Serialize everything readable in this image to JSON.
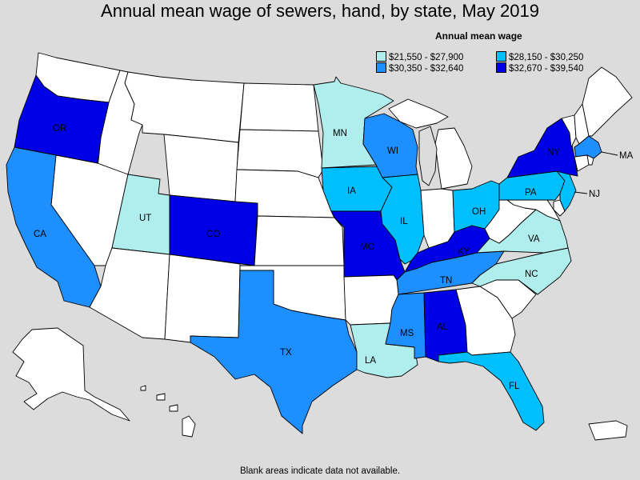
{
  "title": "Annual mean wage of sewers, hand, by state, May 2019",
  "footer": "Blank areas indicate data not available.",
  "legend": {
    "title": "Annual mean wage",
    "items": [
      {
        "label": "$21,550 - $27,900",
        "color": "#b0eded"
      },
      {
        "label": "$28,150 - $30,250",
        "color": "#00bfff"
      },
      {
        "label": "$30,350 - $32,640",
        "color": "#1e8fff"
      },
      {
        "label": "$32,670 - $39,540",
        "color": "#0000e6"
      }
    ]
  },
  "colors": {
    "nodata": "#ffffff",
    "tier1": "#b0eded",
    "tier2": "#00bfff",
    "tier3": "#1e8fff",
    "tier4": "#0000e6",
    "lake": "#dcdcdc"
  },
  "states": {
    "OR": {
      "label": "OR",
      "tier": 4
    },
    "CA": {
      "label": "CA",
      "tier": 3
    },
    "UT": {
      "label": "UT",
      "tier": 1
    },
    "CO": {
      "label": "CO",
      "tier": 4
    },
    "MN": {
      "label": "MN",
      "tier": 1
    },
    "WI": {
      "label": "WI",
      "tier": 3
    },
    "IA": {
      "label": "IA",
      "tier": 2
    },
    "IL": {
      "label": "IL",
      "tier": 2
    },
    "MO": {
      "label": "MO",
      "tier": 4
    },
    "TX": {
      "label": "TX",
      "tier": 3
    },
    "LA": {
      "label": "LA",
      "tier": 1
    },
    "MS": {
      "label": "MS",
      "tier": 3
    },
    "AL": {
      "label": "AL",
      "tier": 4
    },
    "TN": {
      "label": "TN",
      "tier": 3
    },
    "KY": {
      "label": "KY",
      "tier": 4
    },
    "OH": {
      "label": "OH",
      "tier": 2
    },
    "PA": {
      "label": "PA",
      "tier": 2
    },
    "NY": {
      "label": "NY",
      "tier": 4
    },
    "NJ": {
      "label": "NJ",
      "tier": 2
    },
    "MA": {
      "label": "MA",
      "tier": 3
    },
    "VA": {
      "label": "VA",
      "tier": 1
    },
    "NC": {
      "label": "NC",
      "tier": 1
    },
    "FL": {
      "label": "FL",
      "tier": 2
    }
  }
}
